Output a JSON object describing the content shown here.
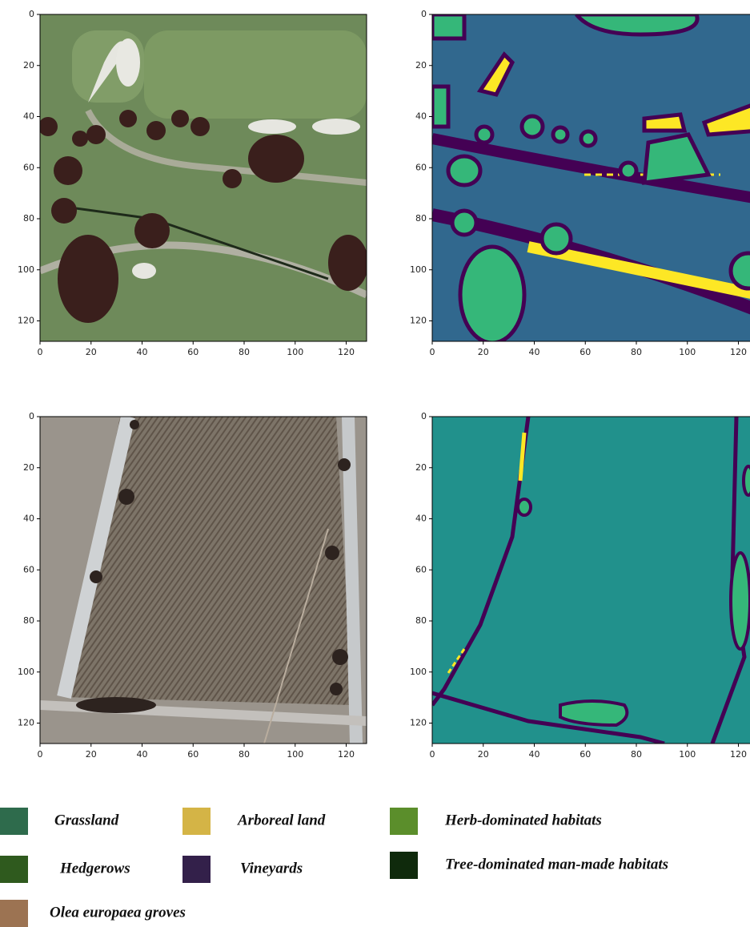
{
  "axes": {
    "xticks": [
      0,
      20,
      40,
      60,
      80,
      100,
      120
    ],
    "yticks": [
      0,
      20,
      40,
      60,
      80,
      100,
      120
    ],
    "xlim": [
      0,
      128
    ],
    "ylim": [
      0,
      128
    ]
  },
  "legend": [
    {
      "label": "Grassland",
      "color": "#2e6b4c"
    },
    {
      "label": "Arboreal land",
      "color": "#d4b446"
    },
    {
      "label": "Herb-dominated habitats",
      "color": "#5b8e2b"
    },
    {
      "label": "Hedgerows",
      "color": "#2f5a1e"
    },
    {
      "label": "Vineyards",
      "color": "#33204a"
    },
    {
      "label": "Tree-dominated man-made habitats",
      "color": "#0f2a0c"
    },
    {
      "label": "Olea europaea groves",
      "color": "#9c7352"
    }
  ]
}
